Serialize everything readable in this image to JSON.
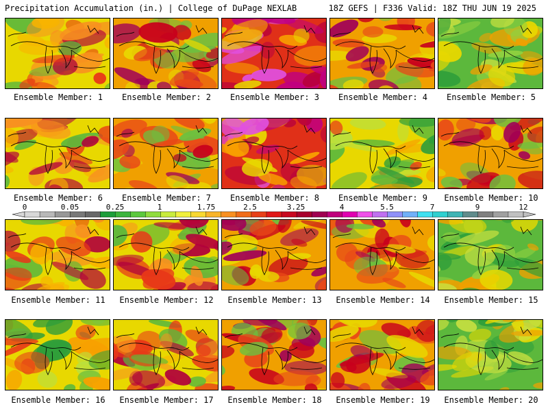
{
  "header": {
    "left": "Precipitation Accumulation (in.) | College of DuPage NEXLAB",
    "right": "18Z GEFS | F336 Valid: 18Z THU JUN 19 2025"
  },
  "members": [
    {
      "label": "Ensemble Member: 1",
      "palette": "yellow-red"
    },
    {
      "label": "Ensemble Member: 2",
      "palette": "red"
    },
    {
      "label": "Ensemble Member: 3",
      "palette": "red-purple"
    },
    {
      "label": "Ensemble Member: 4",
      "palette": "red"
    },
    {
      "label": "Ensemble Member: 5",
      "palette": "green"
    },
    {
      "label": "Ensemble Member: 6",
      "palette": "yellow-red"
    },
    {
      "label": "Ensemble Member: 7",
      "palette": "red"
    },
    {
      "label": "Ensemble Member: 8",
      "palette": "red-purple"
    },
    {
      "label": "Ensemble Member: 9",
      "palette": "yellow-green"
    },
    {
      "label": "Ensemble Member: 10",
      "palette": "red"
    },
    {
      "label": "Ensemble Member: 11",
      "palette": "yellow-red"
    },
    {
      "label": "Ensemble Member: 12",
      "palette": "yellow-red"
    },
    {
      "label": "Ensemble Member: 13",
      "palette": "red"
    },
    {
      "label": "Ensemble Member: 14",
      "palette": "red"
    },
    {
      "label": "Ensemble Member: 15",
      "palette": "green"
    },
    {
      "label": "Ensemble Member: 16",
      "palette": "yellow-green"
    },
    {
      "label": "Ensemble Member: 17",
      "palette": "yellow-red"
    },
    {
      "label": "Ensemble Member: 18",
      "palette": "red"
    },
    {
      "label": "Ensemble Member: 19",
      "palette": "red"
    },
    {
      "label": "Ensemble Member: 20",
      "palette": "green"
    }
  ],
  "colorbar": {
    "tick_labels": [
      "0",
      "0.05",
      "0.25",
      "1",
      "1.75",
      "2.5",
      "3.25",
      "4",
      "5.5",
      "7",
      "9",
      "12"
    ],
    "colors": [
      "#d8d8d8",
      "#b8b8b8",
      "#989898",
      "#787878",
      "#686868",
      "#1e9e3a",
      "#3cb43c",
      "#5cc83c",
      "#90dc3c",
      "#c8ec3c",
      "#f0f03c",
      "#f8d830",
      "#f8b428",
      "#f89020",
      "#f06c18",
      "#e84018",
      "#e01818",
      "#c80820",
      "#a8002c",
      "#a00050",
      "#c0007c",
      "#e000b0",
      "#f050e8",
      "#c070f0",
      "#9090f8",
      "#70b0f8",
      "#40e0f0",
      "#30d0d0",
      "#40b4b4",
      "#608c8c",
      "#808080",
      "#a0a0a0",
      "#c0c0c0"
    ]
  }
}
